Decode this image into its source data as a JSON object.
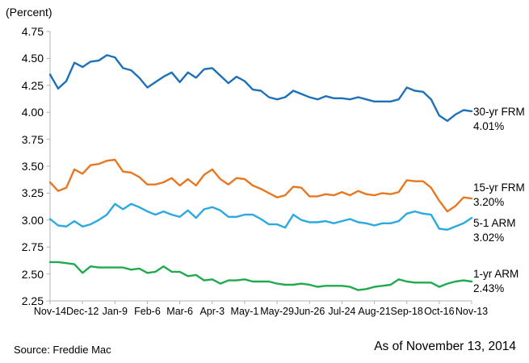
{
  "header": {
    "units_label": "(Percent)"
  },
  "footer": {
    "source": "Source: Freddie Mac",
    "as_of": "As of November 13, 2014"
  },
  "chart_data": {
    "type": "line",
    "title": "",
    "ylabel": "(Percent)",
    "xlabel": "",
    "grid": false,
    "legend_position": "right-of-line-ends",
    "ylim": [
      2.25,
      4.75
    ],
    "y_tick_step": 0.25,
    "y_tick_labels": [
      "4.75",
      "4.50",
      "4.25",
      "4.00",
      "3.75",
      "3.50",
      "3.25",
      "3.00",
      "2.75",
      "2.50",
      "2.25"
    ],
    "x_tick_labels": [
      "Nov-14",
      "Dec-12",
      "Jan-9",
      "Feb-6",
      "Mar-6",
      "Apr-3",
      "May-1",
      "May-29",
      "Jun-26",
      "Jul-24",
      "Aug-21",
      "Sep-18",
      "Oct-16",
      "Nov-13"
    ],
    "x_ticks_every_n_points": 4,
    "points_per_series": 53,
    "axis_color": "#b3b3b3",
    "series": [
      {
        "name": "30-yr FRM",
        "end_label": "4.01%",
        "color": "#1E71B8",
        "values": [
          4.35,
          4.22,
          4.29,
          4.46,
          4.42,
          4.47,
          4.48,
          4.53,
          4.51,
          4.41,
          4.39,
          4.32,
          4.23,
          4.28,
          4.33,
          4.37,
          4.28,
          4.37,
          4.32,
          4.4,
          4.41,
          4.34,
          4.27,
          4.33,
          4.29,
          4.21,
          4.2,
          4.14,
          4.12,
          4.14,
          4.2,
          4.17,
          4.14,
          4.12,
          4.15,
          4.13,
          4.13,
          4.12,
          4.14,
          4.12,
          4.1,
          4.1,
          4.1,
          4.12,
          4.23,
          4.2,
          4.19,
          4.12,
          3.97,
          3.92,
          3.98,
          4.02,
          4.01
        ]
      },
      {
        "name": "15-yr FRM",
        "end_label": "3.20%",
        "color": "#E87722",
        "values": [
          3.35,
          3.27,
          3.3,
          3.47,
          3.43,
          3.51,
          3.52,
          3.55,
          3.56,
          3.45,
          3.44,
          3.4,
          3.33,
          3.33,
          3.35,
          3.39,
          3.32,
          3.38,
          3.32,
          3.42,
          3.47,
          3.38,
          3.33,
          3.39,
          3.38,
          3.32,
          3.29,
          3.25,
          3.21,
          3.23,
          3.31,
          3.3,
          3.22,
          3.22,
          3.24,
          3.23,
          3.26,
          3.23,
          3.27,
          3.24,
          3.23,
          3.25,
          3.24,
          3.26,
          3.37,
          3.36,
          3.36,
          3.3,
          3.18,
          3.08,
          3.13,
          3.21,
          3.2
        ]
      },
      {
        "name": "5-1 ARM",
        "end_label": "3.02%",
        "color": "#2BA9E0",
        "values": [
          3.01,
          2.95,
          2.94,
          2.99,
          2.94,
          2.96,
          3.0,
          3.05,
          3.15,
          3.1,
          3.15,
          3.12,
          3.08,
          3.05,
          3.08,
          3.05,
          3.03,
          3.09,
          3.02,
          3.1,
          3.12,
          3.09,
          3.03,
          3.03,
          3.05,
          3.05,
          3.01,
          2.96,
          2.96,
          2.93,
          3.05,
          3.0,
          2.98,
          2.98,
          2.99,
          2.97,
          2.99,
          3.01,
          2.98,
          2.97,
          2.95,
          2.97,
          2.97,
          2.99,
          3.06,
          3.08,
          3.06,
          3.05,
          2.92,
          2.91,
          2.94,
          2.97,
          3.02
        ]
      },
      {
        "name": "1-yr ARM",
        "end_label": "2.43%",
        "color": "#21A94E",
        "values": [
          2.61,
          2.61,
          2.6,
          2.59,
          2.51,
          2.57,
          2.56,
          2.56,
          2.56,
          2.56,
          2.54,
          2.55,
          2.51,
          2.52,
          2.57,
          2.52,
          2.52,
          2.48,
          2.49,
          2.44,
          2.45,
          2.41,
          2.44,
          2.44,
          2.45,
          2.43,
          2.43,
          2.43,
          2.41,
          2.4,
          2.4,
          2.41,
          2.4,
          2.38,
          2.39,
          2.39,
          2.39,
          2.38,
          2.35,
          2.36,
          2.38,
          2.39,
          2.4,
          2.45,
          2.43,
          2.42,
          2.42,
          2.42,
          2.38,
          2.41,
          2.43,
          2.44,
          2.43
        ]
      }
    ]
  }
}
